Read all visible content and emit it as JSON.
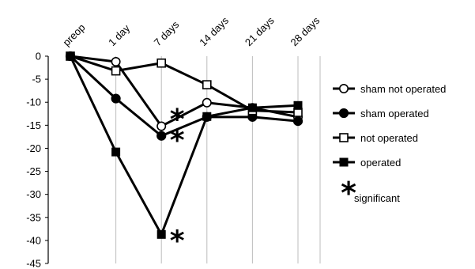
{
  "chart_data": {
    "type": "line",
    "title": "",
    "xlabel": "",
    "ylabel": "",
    "categories": [
      "preop",
      "1 day",
      "7 days",
      "14 days",
      "21 days",
      "28 days"
    ],
    "ylim": [
      -45,
      0
    ],
    "yticks": [
      0,
      -5,
      -10,
      -15,
      -20,
      -25,
      -30,
      -35,
      -40,
      -45
    ],
    "grid": {
      "horizontal": false,
      "vertical": true
    },
    "legend_position": "right",
    "series": [
      {
        "name": "sham not operated",
        "marker": "circle-open",
        "values": [
          0,
          -1.2,
          -15.2,
          -10.1,
          -11.2,
          -13.2
        ]
      },
      {
        "name": "sham operated",
        "marker": "circle-filled",
        "values": [
          0,
          -9.2,
          -17.3,
          -13.2,
          -13.2,
          -14.1
        ]
      },
      {
        "name": "not operated",
        "marker": "square-open",
        "values": [
          0,
          -3.2,
          -1.5,
          -6.2,
          -11.8,
          -12.2
        ]
      },
      {
        "name": "operated",
        "marker": "square-filled",
        "values": [
          0,
          -20.8,
          -38.7,
          -13.1,
          -11.2,
          -10.7
        ]
      }
    ],
    "annotations": [
      {
        "text": "*",
        "category": "7 days",
        "value": -13.2,
        "size": "large"
      },
      {
        "text": "*",
        "category": "7 days",
        "value": -17.8,
        "size": "large"
      },
      {
        "text": "*",
        "category": "7 days",
        "value": -39.6,
        "size": "large"
      }
    ],
    "legend_note": {
      "symbol": "*",
      "label": "significant"
    }
  }
}
